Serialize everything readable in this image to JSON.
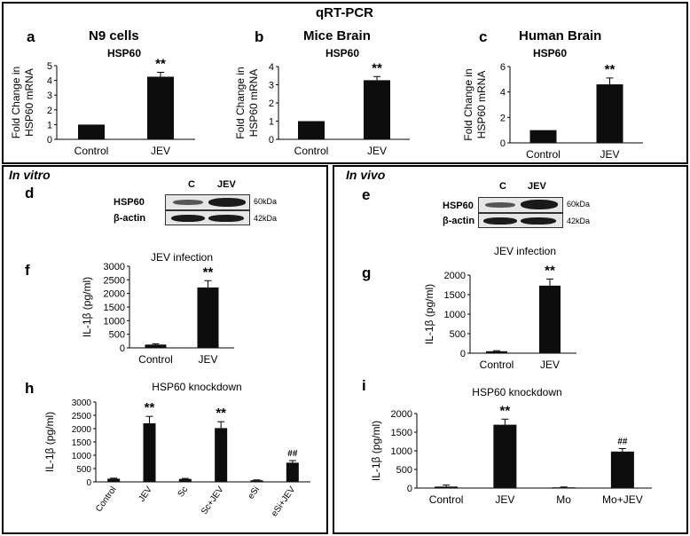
{
  "figure": {
    "header": "qRT-PCR",
    "section_in_vitro": "In vitro",
    "section_in_vivo": "In vivo"
  },
  "panels": {
    "a": {
      "letter": "a",
      "title": "N9 cells"
    },
    "b": {
      "letter": "b",
      "title": "Mice Brain"
    },
    "c": {
      "letter": "c",
      "title": "Human Brain"
    },
    "d": {
      "letter": "d"
    },
    "e": {
      "letter": "e"
    },
    "f": {
      "letter": "f"
    },
    "g": {
      "letter": "g"
    },
    "h": {
      "letter": "h"
    },
    "i": {
      "letter": "i"
    }
  },
  "western_blots": {
    "d": {
      "lanes": [
        "C",
        "JEV"
      ],
      "rows": [
        "HSP60",
        "β-actin"
      ],
      "sizes": [
        "60kDa",
        "42kDa"
      ]
    },
    "e": {
      "lanes": [
        "C",
        "JEV"
      ],
      "rows": [
        "HSP60",
        "β-actin"
      ],
      "sizes": [
        "60kDa",
        "42kDa"
      ]
    }
  },
  "chart_data": [
    {
      "id": "a",
      "type": "bar",
      "title": "HSP60",
      "ylabel": "Fold Change in HSP60 mRNA",
      "xlabel": "",
      "categories": [
        "Control",
        "JEV"
      ],
      "values": [
        1,
        4.25
      ],
      "errors": [
        0,
        0.3
      ],
      "annotations": [
        "",
        "**"
      ],
      "ylim": [
        0,
        5
      ],
      "yticks": [
        "0",
        "1",
        "2",
        "3",
        "4",
        "5"
      ]
    },
    {
      "id": "b",
      "type": "bar",
      "title": "HSP60",
      "ylabel": "Fold Change in HSP60 mRNA",
      "xlabel": "",
      "categories": [
        "Control",
        "JEV"
      ],
      "values": [
        1,
        3.25
      ],
      "errors": [
        0,
        0.2
      ],
      "annotations": [
        "",
        "**"
      ],
      "ylim": [
        0,
        4
      ],
      "yticks": [
        "0",
        "1",
        "2",
        "3",
        "4"
      ]
    },
    {
      "id": "c",
      "type": "bar",
      "title": "HSP60",
      "ylabel": "Fold Change in HSP60 mRNA",
      "xlabel": "",
      "categories": [
        "Control",
        "JEV"
      ],
      "values": [
        1,
        4.6
      ],
      "errors": [
        0,
        0.5
      ],
      "annotations": [
        "",
        "**"
      ],
      "ylim": [
        0,
        6
      ],
      "yticks": [
        "0",
        "2",
        "4",
        "6"
      ]
    },
    {
      "id": "f",
      "type": "bar",
      "title": "JEV infection",
      "ylabel": "IL-1β (pg/ml)",
      "xlabel": "",
      "categories": [
        "Control",
        "JEV"
      ],
      "values": [
        120,
        2220
      ],
      "errors": [
        30,
        250
      ],
      "annotations": [
        "",
        "**"
      ],
      "ylim": [
        0,
        3000
      ],
      "yticks": [
        "0",
        "500",
        "1000",
        "1500",
        "2000",
        "2500",
        "3000"
      ]
    },
    {
      "id": "g",
      "type": "bar",
      "title": "JEV infection",
      "ylabel": "IL-1β (pg/ml)",
      "xlabel": "",
      "categories": [
        "Control",
        "JEV"
      ],
      "values": [
        50,
        1730
      ],
      "errors": [
        15,
        170
      ],
      "annotations": [
        "",
        "**"
      ],
      "ylim": [
        0,
        2000
      ],
      "yticks": [
        "0",
        "500",
        "1000",
        "1500",
        "2000"
      ]
    },
    {
      "id": "h",
      "type": "bar",
      "title": "HSP60 knockdown",
      "ylabel": "IL-1β (pg/ml)",
      "xlabel": "",
      "categories": [
        "Control",
        "JEV",
        "Sc",
        "Sc+JEV",
        "eSi",
        "eSi+JEV"
      ],
      "values": [
        120,
        2200,
        110,
        2020,
        60,
        720
      ],
      "errors": [
        20,
        260,
        20,
        240,
        15,
        80
      ],
      "annotations": [
        "",
        "**",
        "",
        "**",
        "",
        "##"
      ],
      "ylim": [
        0,
        3000
      ],
      "yticks": [
        "0",
        "500",
        "1000",
        "1500",
        "2000",
        "2500",
        "3000"
      ]
    },
    {
      "id": "i",
      "type": "bar",
      "title": "HSP60 knockdown",
      "ylabel": "IL-1β (pg/ml)",
      "xlabel": "",
      "categories": [
        "Control",
        "JEV",
        "Mo",
        "Mo+JEV"
      ],
      "values": [
        40,
        1700,
        20,
        980
      ],
      "errors": [
        40,
        150,
        10,
        80
      ],
      "annotations": [
        "",
        "**",
        "",
        "##"
      ],
      "ylim": [
        0,
        2000
      ],
      "yticks": [
        "0",
        "500",
        "1000",
        "1500",
        "2000"
      ]
    }
  ]
}
